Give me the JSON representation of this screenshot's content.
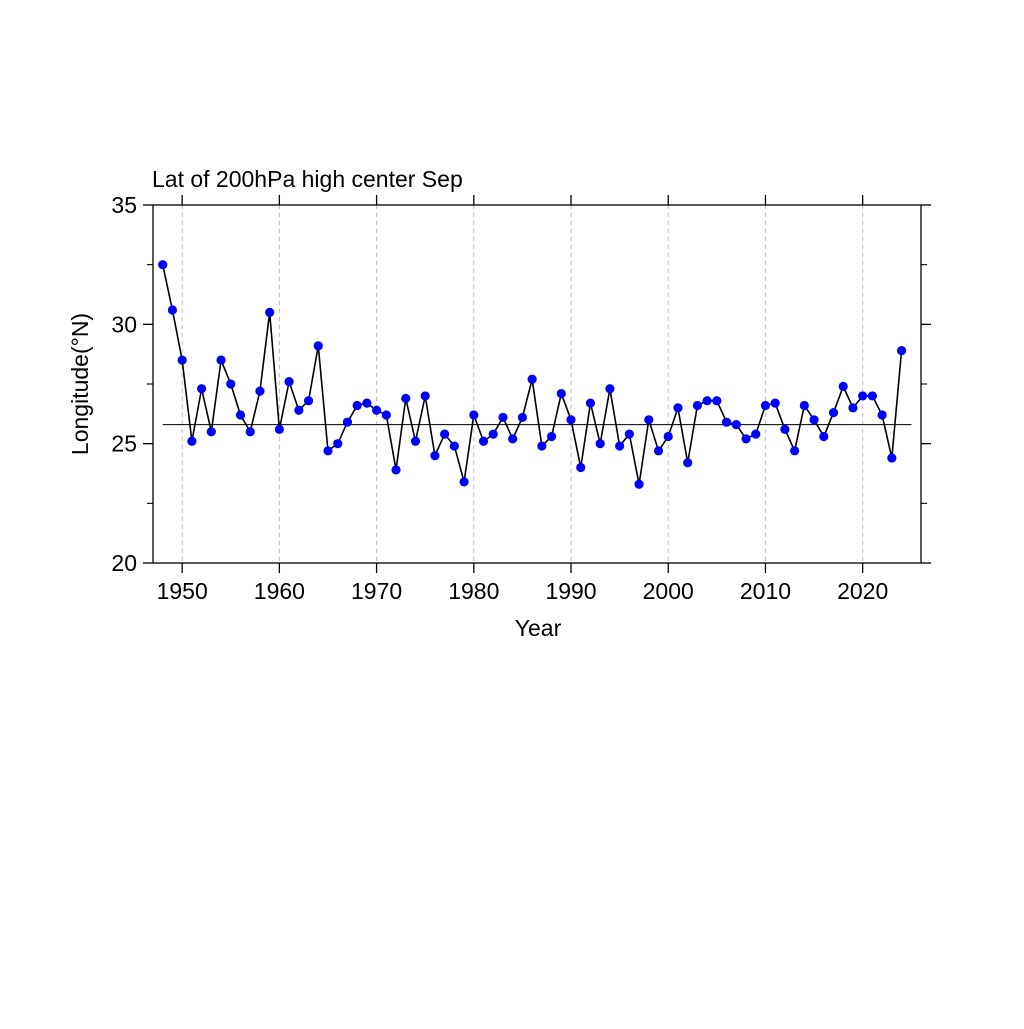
{
  "chart_data": {
    "type": "line",
    "title": "Lat of 200hPa high center Sep",
    "xlabel": "Year",
    "ylabel": "Longitude(°N)",
    "xlim": [
      1947,
      2026
    ],
    "ylim": [
      20,
      35
    ],
    "x_ticks": [
      1950,
      1960,
      1970,
      1980,
      1990,
      2000,
      2010,
      2020
    ],
    "y_ticks": [
      20,
      25,
      30,
      35
    ],
    "y_minor_ticks": [
      22.5,
      27.5,
      32.5
    ],
    "grid": "vertical dashed at x ticks",
    "mean_line": 25.8,
    "series": [
      {
        "marker_color": "#0000ff",
        "line_color": "#000000",
        "x": [
          1948,
          1949,
          1950,
          1951,
          1952,
          1953,
          1954,
          1955,
          1956,
          1957,
          1958,
          1959,
          1960,
          1961,
          1962,
          1963,
          1964,
          1965,
          1966,
          1967,
          1968,
          1969,
          1970,
          1971,
          1972,
          1973,
          1974,
          1975,
          1976,
          1977,
          1978,
          1979,
          1980,
          1981,
          1982,
          1983,
          1984,
          1985,
          1986,
          1987,
          1988,
          1989,
          1990,
          1991,
          1992,
          1993,
          1994,
          1995,
          1996,
          1997,
          1998,
          1999,
          2000,
          2001,
          2002,
          2003,
          2004,
          2005,
          2006,
          2007,
          2008,
          2009,
          2010,
          2011,
          2012,
          2013,
          2014,
          2015,
          2016,
          2017,
          2018,
          2019,
          2020,
          2021,
          2022,
          2023,
          2024
        ],
        "values": [
          32.5,
          30.6,
          28.5,
          25.1,
          27.3,
          25.5,
          28.5,
          27.5,
          26.2,
          25.5,
          27.2,
          30.5,
          25.6,
          27.6,
          26.4,
          26.8,
          29.1,
          24.7,
          25.0,
          25.9,
          26.6,
          26.7,
          26.4,
          26.2,
          23.9,
          26.9,
          25.1,
          27.0,
          24.5,
          25.4,
          24.9,
          23.4,
          26.2,
          25.1,
          25.4,
          26.1,
          25.2,
          26.1,
          27.7,
          24.9,
          25.3,
          27.1,
          26.0,
          24.0,
          26.7,
          25.0,
          27.3,
          24.9,
          25.4,
          23.3,
          26.0,
          24.7,
          25.3,
          26.5,
          24.2,
          26.6,
          26.8,
          26.8,
          25.9,
          25.8,
          25.2,
          25.4,
          26.6,
          26.7,
          25.6,
          24.7,
          26.6,
          26.0,
          25.3,
          26.3,
          27.4,
          26.5,
          27.0,
          27.0,
          26.2,
          24.4,
          28.9
        ]
      }
    ]
  }
}
